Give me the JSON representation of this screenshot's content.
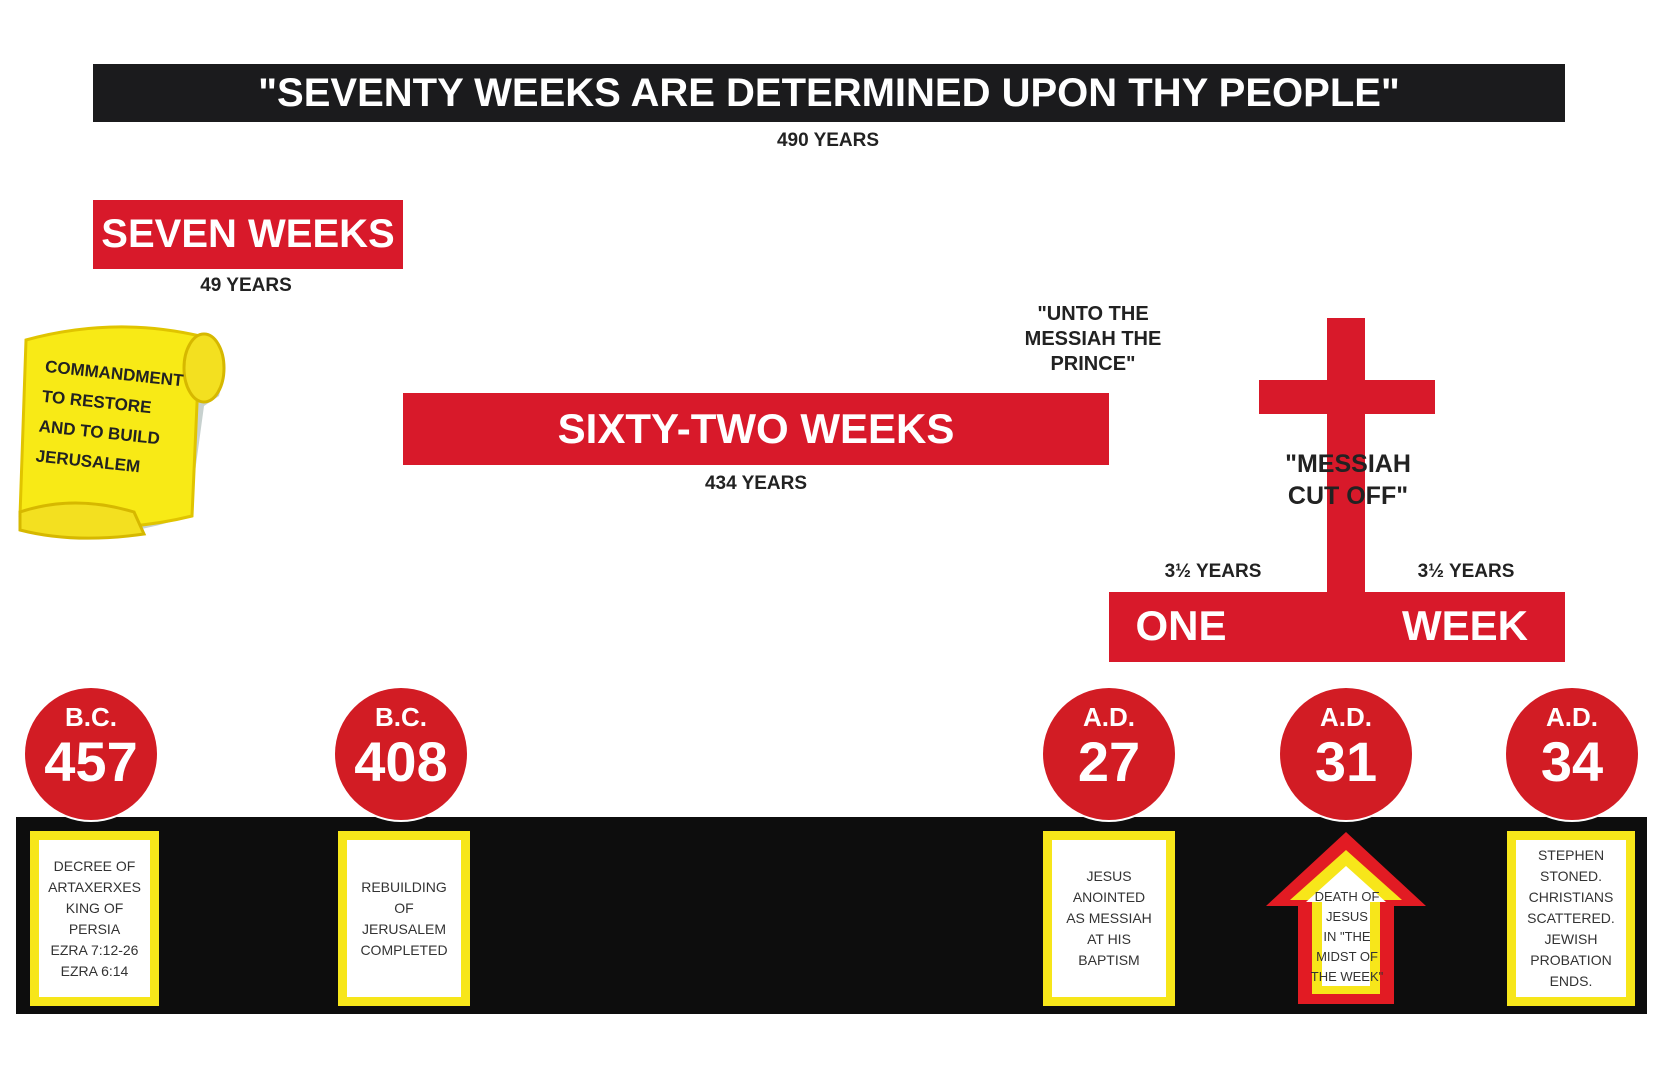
{
  "header": {
    "title": "\"SEVENTY WEEKS ARE DETERMINED UPON THY PEOPLE\"",
    "span": "490 YEARS"
  },
  "periods": [
    {
      "label": "SEVEN WEEKS",
      "span": "49 YEARS"
    },
    {
      "label": "SIXTY-TWO WEEKS",
      "span": "434 YEARS"
    },
    {
      "label": [
        "ONE",
        "WEEK"
      ],
      "spans": [
        "3½ YEARS",
        "3½ YEARS"
      ]
    }
  ],
  "scroll": [
    "COMMANDMENT",
    "TO RESTORE",
    "AND TO BUILD",
    "JERUSALEM"
  ],
  "quotes": [
    [
      "\"UNTO THE",
      "MESSIAH THE",
      "PRINCE\""
    ],
    [
      "\"MESSIAH",
      "CUT OFF\""
    ]
  ],
  "dates": [
    {
      "era": "B.C.",
      "year": "457",
      "note": [
        "DECREE OF",
        "ARTAXERXES",
        "KING OF",
        "PERSIA",
        "EZRA 7:12-26",
        "EZRA 6:14"
      ]
    },
    {
      "era": "B.C.",
      "year": "408",
      "note": [
        "REBUILDING",
        "OF",
        "JERUSALEM",
        "COMPLETED"
      ]
    },
    {
      "era": "A.D.",
      "year": "27",
      "note": [
        "JESUS",
        "ANOINTED",
        "AS MESSIAH",
        "AT HIS",
        "BAPTISM"
      ]
    },
    {
      "era": "A.D.",
      "year": "31",
      "note": [
        "DEATH OF",
        "JESUS",
        "IN \"THE",
        "MIDST OF",
        "THE WEEK\""
      ]
    },
    {
      "era": "A.D.",
      "year": "34",
      "note": [
        "STEPHEN",
        "STONED.",
        "CHRISTIANS",
        "SCATTERED.",
        "JEWISH",
        "PROBATION",
        "ENDS."
      ]
    }
  ]
}
